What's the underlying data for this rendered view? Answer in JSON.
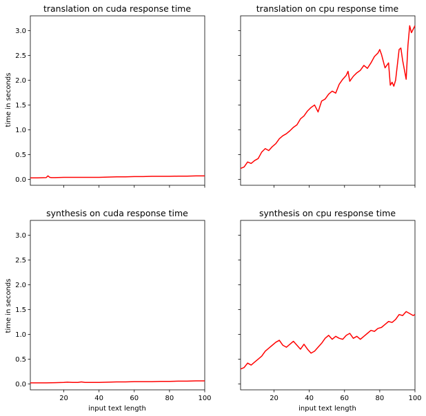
{
  "chart_data": [
    {
      "type": "line",
      "title": "translation on cuda response time",
      "xlabel": "",
      "ylabel": "time in seconds",
      "xlim": [
        1,
        100
      ],
      "ylim": [
        -0.12,
        3.3
      ],
      "xticks": [
        20,
        40,
        60,
        80,
        100
      ],
      "yticks": [
        0.0,
        0.5,
        1.0,
        1.5,
        2.0,
        2.5,
        3.0
      ],
      "show_x_tick_labels": false,
      "show_y_tick_labels": true,
      "color": "#ff0000",
      "series": [
        {
          "x": [
            1,
            5,
            10,
            11,
            12,
            13,
            15,
            20,
            25,
            30,
            35,
            40,
            45,
            50,
            55,
            60,
            65,
            70,
            75,
            80,
            85,
            90,
            95,
            100
          ],
          "values": [
            0.03,
            0.03,
            0.035,
            0.07,
            0.04,
            0.035,
            0.035,
            0.04,
            0.04,
            0.04,
            0.04,
            0.04,
            0.045,
            0.05,
            0.05,
            0.055,
            0.055,
            0.06,
            0.06,
            0.06,
            0.065,
            0.065,
            0.07,
            0.07
          ]
        }
      ]
    },
    {
      "type": "line",
      "title": "translation on cpu response time",
      "xlabel": "",
      "ylabel": "",
      "xlim": [
        1,
        100
      ],
      "ylim": [
        -0.12,
        3.3
      ],
      "xticks": [
        20,
        40,
        60,
        80,
        100
      ],
      "yticks": [
        0.0,
        0.5,
        1.0,
        1.5,
        2.0,
        2.5,
        3.0
      ],
      "show_x_tick_labels": false,
      "show_y_tick_labels": false,
      "color": "#ff0000",
      "series": [
        {
          "x": [
            1,
            3,
            5,
            7,
            9,
            11,
            13,
            15,
            17,
            19,
            21,
            23,
            25,
            27,
            29,
            31,
            33,
            35,
            37,
            39,
            41,
            43,
            45,
            47,
            49,
            51,
            53,
            55,
            57,
            59,
            61,
            62,
            63,
            65,
            67,
            69,
            71,
            73,
            75,
            77,
            79,
            80,
            81,
            83,
            85,
            86,
            87,
            88,
            89,
            91,
            92,
            93,
            95,
            96,
            97,
            98,
            100
          ],
          "values": [
            0.22,
            0.25,
            0.35,
            0.32,
            0.38,
            0.42,
            0.55,
            0.62,
            0.58,
            0.66,
            0.72,
            0.82,
            0.88,
            0.92,
            0.98,
            1.05,
            1.1,
            1.22,
            1.28,
            1.38,
            1.45,
            1.5,
            1.36,
            1.58,
            1.62,
            1.72,
            1.78,
            1.74,
            1.92,
            2.02,
            2.1,
            2.18,
            1.98,
            2.08,
            2.15,
            2.2,
            2.3,
            2.24,
            2.35,
            2.48,
            2.55,
            2.62,
            2.52,
            2.25,
            2.35,
            1.9,
            1.96,
            1.88,
            2.0,
            2.62,
            2.65,
            2.4,
            2.02,
            2.7,
            3.1,
            2.96,
            3.1
          ]
        }
      ]
    },
    {
      "type": "line",
      "title": "synthesis on cuda response time",
      "xlabel": "input text length",
      "ylabel": "time in seconds",
      "xlim": [
        1,
        100
      ],
      "ylim": [
        -0.12,
        3.3
      ],
      "xticks": [
        20,
        40,
        60,
        80,
        100
      ],
      "yticks": [
        0.0,
        0.5,
        1.0,
        1.5,
        2.0,
        2.5,
        3.0
      ],
      "show_x_tick_labels": true,
      "show_y_tick_labels": true,
      "color": "#ff0000",
      "series": [
        {
          "x": [
            1,
            5,
            10,
            15,
            20,
            22,
            25,
            28,
            30,
            32,
            35,
            40,
            45,
            50,
            55,
            60,
            65,
            70,
            75,
            80,
            85,
            90,
            95,
            100
          ],
          "values": [
            0.02,
            0.02,
            0.02,
            0.025,
            0.03,
            0.035,
            0.03,
            0.03,
            0.04,
            0.03,
            0.03,
            0.03,
            0.035,
            0.04,
            0.04,
            0.045,
            0.045,
            0.045,
            0.05,
            0.05,
            0.055,
            0.055,
            0.06,
            0.06
          ]
        }
      ]
    },
    {
      "type": "line",
      "title": "synthesis on cpu response time",
      "xlabel": "input text length",
      "ylabel": "",
      "xlim": [
        1,
        100
      ],
      "ylim": [
        -0.12,
        3.3
      ],
      "xticks": [
        20,
        40,
        60,
        80,
        100
      ],
      "yticks": [
        0.0,
        0.5,
        1.0,
        1.5,
        2.0,
        2.5,
        3.0
      ],
      "show_x_tick_labels": true,
      "show_y_tick_labels": false,
      "color": "#ff0000",
      "series": [
        {
          "x": [
            1,
            3,
            5,
            7,
            9,
            11,
            13,
            15,
            17,
            19,
            21,
            23,
            25,
            27,
            29,
            31,
            33,
            35,
            37,
            39,
            41,
            43,
            45,
            47,
            49,
            51,
            53,
            55,
            57,
            59,
            61,
            63,
            65,
            67,
            69,
            71,
            73,
            75,
            77,
            79,
            81,
            83,
            85,
            87,
            89,
            91,
            93,
            95,
            97,
            99,
            100
          ],
          "values": [
            0.3,
            0.33,
            0.42,
            0.38,
            0.44,
            0.5,
            0.56,
            0.66,
            0.72,
            0.78,
            0.84,
            0.88,
            0.78,
            0.74,
            0.8,
            0.86,
            0.78,
            0.7,
            0.8,
            0.7,
            0.62,
            0.66,
            0.74,
            0.82,
            0.92,
            0.98,
            0.9,
            0.96,
            0.92,
            0.9,
            0.98,
            1.02,
            0.92,
            0.96,
            0.9,
            0.96,
            1.02,
            1.08,
            1.06,
            1.12,
            1.14,
            1.2,
            1.26,
            1.24,
            1.3,
            1.4,
            1.38,
            1.46,
            1.42,
            1.38,
            1.4
          ]
        }
      ]
    }
  ]
}
